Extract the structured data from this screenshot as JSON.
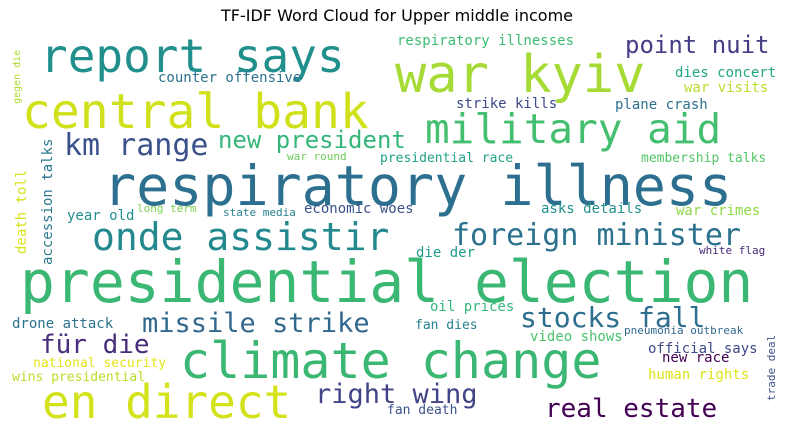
{
  "chart_data": {
    "type": "wordcloud",
    "title": "TF-IDF Word Cloud for Upper middle income",
    "words": [
      {
        "text": "presidential election",
        "weight": 1.0,
        "color": "#3bb774",
        "orient": "h"
      },
      {
        "text": "respiratory illness",
        "weight": 0.95,
        "color": "#2c6f8e",
        "orient": "h"
      },
      {
        "text": "climate change",
        "weight": 0.82,
        "color": "#3bb774",
        "orient": "h"
      },
      {
        "text": "report says",
        "weight": 0.76,
        "color": "#21908d",
        "orient": "h"
      },
      {
        "text": "war kyiv",
        "weight": 0.75,
        "color": "#a6db35",
        "orient": "h"
      },
      {
        "text": "central bank",
        "weight": 0.72,
        "color": "#d0e11c",
        "orient": "h"
      },
      {
        "text": "en direct",
        "weight": 0.7,
        "color": "#d3e21b",
        "orient": "h"
      },
      {
        "text": "military aid",
        "weight": 0.62,
        "color": "#44bf70",
        "orient": "h"
      },
      {
        "text": "onde assistir",
        "weight": 0.58,
        "color": "#23898e",
        "orient": "h"
      },
      {
        "text": "foreign minister",
        "weight": 0.45,
        "color": "#2c728e",
        "orient": "h"
      },
      {
        "text": "km range",
        "weight": 0.4,
        "color": "#3b518b",
        "orient": "h"
      },
      {
        "text": "stocks fall",
        "weight": 0.4,
        "color": "#2e6e8e",
        "orient": "h"
      },
      {
        "text": "right wing",
        "weight": 0.38,
        "color": "#414487",
        "orient": "h"
      },
      {
        "text": "missile strike",
        "weight": 0.37,
        "color": "#31688e",
        "orient": "h"
      },
      {
        "text": "real estate",
        "weight": 0.34,
        "color": "#440154",
        "orient": "h"
      },
      {
        "text": "für die",
        "weight": 0.34,
        "color": "#472d7b",
        "orient": "h"
      },
      {
        "text": "new president",
        "weight": 0.3,
        "color": "#35b779",
        "orient": "h"
      },
      {
        "text": "point nuit",
        "weight": 0.3,
        "color": "#433e85",
        "orient": "h"
      },
      {
        "text": "respiratory illnesses",
        "weight": 0.16,
        "color": "#3dbc74",
        "orient": "h"
      },
      {
        "text": "counter offensive",
        "weight": 0.16,
        "color": "#2c728e",
        "orient": "h"
      },
      {
        "text": "dies concert",
        "weight": 0.16,
        "color": "#21a685",
        "orient": "h"
      },
      {
        "text": "war visits",
        "weight": 0.15,
        "color": "#b5de2b",
        "orient": "h"
      },
      {
        "text": "strike kills",
        "weight": 0.15,
        "color": "#3e4989",
        "orient": "h"
      },
      {
        "text": "plane crash",
        "weight": 0.15,
        "color": "#2d708e",
        "orient": "h"
      },
      {
        "text": "presidential race",
        "weight": 0.14,
        "color": "#1fa187",
        "orient": "h"
      },
      {
        "text": "membership talks",
        "weight": 0.14,
        "color": "#54c568",
        "orient": "h"
      },
      {
        "text": "war round",
        "weight": 0.12,
        "color": "#6ccd5a",
        "orient": "h"
      },
      {
        "text": "long term",
        "weight": 0.12,
        "color": "#7ad151",
        "orient": "h"
      },
      {
        "text": "year old",
        "weight": 0.14,
        "color": "#218f8d",
        "orient": "h"
      },
      {
        "text": "state media",
        "weight": 0.12,
        "color": "#26828e",
        "orient": "h"
      },
      {
        "text": "economic woes",
        "weight": 0.15,
        "color": "#3b528b",
        "orient": "h"
      },
      {
        "text": "asks details",
        "weight": 0.15,
        "color": "#21918c",
        "orient": "h"
      },
      {
        "text": "war crimes",
        "weight": 0.15,
        "color": "#8fd744",
        "orient": "h"
      },
      {
        "text": "die der",
        "weight": 0.14,
        "color": "#1f9a8a",
        "orient": "h"
      },
      {
        "text": "white flag",
        "weight": 0.12,
        "color": "#482878",
        "orient": "h"
      },
      {
        "text": "oil prices",
        "weight": 0.14,
        "color": "#35b779",
        "orient": "h"
      },
      {
        "text": "drone attack",
        "weight": 0.15,
        "color": "#2c728e",
        "orient": "h"
      },
      {
        "text": "fan dies",
        "weight": 0.13,
        "color": "#26828e",
        "orient": "h"
      },
      {
        "text": "video shows",
        "weight": 0.14,
        "color": "#4ac16d",
        "orient": "h"
      },
      {
        "text": "pneumonia outbreak",
        "weight": 0.12,
        "color": "#31688e",
        "orient": "h"
      },
      {
        "text": "official says",
        "weight": 0.15,
        "color": "#3e4a89",
        "orient": "h"
      },
      {
        "text": "national security",
        "weight": 0.14,
        "color": "#e5e419",
        "orient": "h"
      },
      {
        "text": "new race",
        "weight": 0.14,
        "color": "#440154",
        "orient": "h"
      },
      {
        "text": "wins presidential",
        "weight": 0.13,
        "color": "#b8de29",
        "orient": "h"
      },
      {
        "text": "human rights",
        "weight": 0.14,
        "color": "#dde318",
        "orient": "h"
      },
      {
        "text": "fan death",
        "weight": 0.13,
        "color": "#3b528b",
        "orient": "h"
      },
      {
        "text": "gegen die",
        "weight": 0.1,
        "color": "#addc30",
        "orient": "v"
      },
      {
        "text": "death toll",
        "weight": 0.14,
        "color": "#d8e219",
        "orient": "v"
      },
      {
        "text": "accession talks",
        "weight": 0.14,
        "color": "#2a788e",
        "orient": "v"
      },
      {
        "text": "trade deal",
        "weight": 0.12,
        "color": "#3b528b",
        "orient": "v"
      }
    ]
  }
}
